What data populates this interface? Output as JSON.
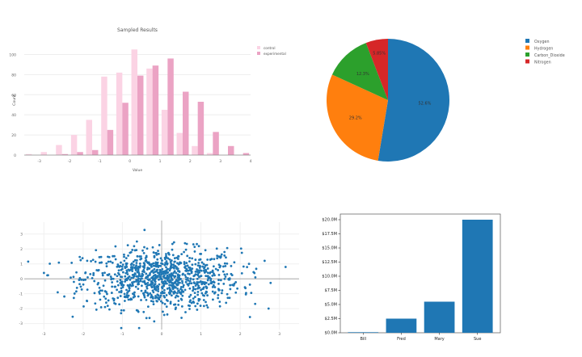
{
  "chart_data": [
    {
      "type": "bar",
      "subtype": "grouped-histogram",
      "title": "Sampled Results",
      "xlabel": "Value",
      "ylabel": "Count",
      "bin_width": 0.5,
      "bin_starts": [
        -3.5,
        -3,
        -2.5,
        -2,
        -1.5,
        -1,
        -0.5,
        0,
        0.5,
        1,
        1.5,
        2,
        2.5,
        3,
        3.5
      ],
      "series": [
        {
          "name": "control",
          "color": "#fbd3e4",
          "values": [
            1,
            3,
            10,
            20,
            35,
            78,
            82,
            105,
            86,
            45,
            22,
            9,
            2,
            0,
            0
          ]
        },
        {
          "name": "experimental",
          "color": "#eba3c4",
          "values": [
            0,
            0,
            1,
            3,
            5,
            25,
            52,
            79,
            89,
            96,
            63,
            53,
            23,
            9,
            2
          ]
        }
      ],
      "xticks": [
        "-3",
        "-2",
        "-1",
        "0",
        "1",
        "2",
        "3",
        "4"
      ],
      "yticks": [
        "0",
        "20",
        "40",
        "60",
        "80",
        "100"
      ],
      "xlim": [
        -3.5,
        4
      ],
      "ylim": [
        0,
        110
      ],
      "grid": true,
      "legend_position": "top-right"
    },
    {
      "type": "pie",
      "labels": [
        "Oxygen",
        "Hydrogen",
        "Carbon_Dioxide",
        "Nitrogen"
      ],
      "values": [
        4500,
        2500,
        1053,
        500
      ],
      "percent_labels": [
        "52.6%",
        "29.2%",
        "12.3%",
        "5.85%"
      ],
      "colors": [
        "#1f77b4",
        "#ff7f0e",
        "#2ca02c",
        "#d62728"
      ],
      "legend_position": "right"
    },
    {
      "type": "scatter",
      "title": "",
      "n_points": 1000,
      "distribution": "x ~ N(0,1), y ~ N(0,1)",
      "color": "#1f77b4",
      "xticks": [
        "-3",
        "-2",
        "-1",
        "0",
        "1",
        "2",
        "3"
      ],
      "yticks": [
        "-3",
        "-2",
        "-1",
        "0",
        "1",
        "2",
        "3"
      ],
      "xlim": [
        -3.5,
        3.5
      ],
      "ylim": [
        -3.4,
        3.8
      ],
      "grid": true,
      "zero_lines": true
    },
    {
      "type": "bar",
      "categories": [
        "Bill",
        "Fred",
        "Mary",
        "Sue"
      ],
      "values": [
        100000,
        2500000,
        5500000,
        20000000
      ],
      "color": "#1f77b4",
      "yticks": [
        "$0.0M",
        "$2.5M",
        "$5.0M",
        "$7.5M",
        "$10.0M",
        "$12.5M",
        "$15.0M",
        "$17.5M",
        "$20.0M"
      ],
      "ylim": [
        0,
        20000000
      ],
      "xlabel": "",
      "ylabel": ""
    }
  ],
  "histogram": {
    "title": "Sampled Results",
    "xlabel": "Value",
    "ylabel": "Count",
    "legend": [
      "control",
      "experimental"
    ]
  },
  "pie": {
    "legend": [
      "Oxygen",
      "Hydrogen",
      "Carbon_Dioxide",
      "Nitrogen"
    ]
  }
}
